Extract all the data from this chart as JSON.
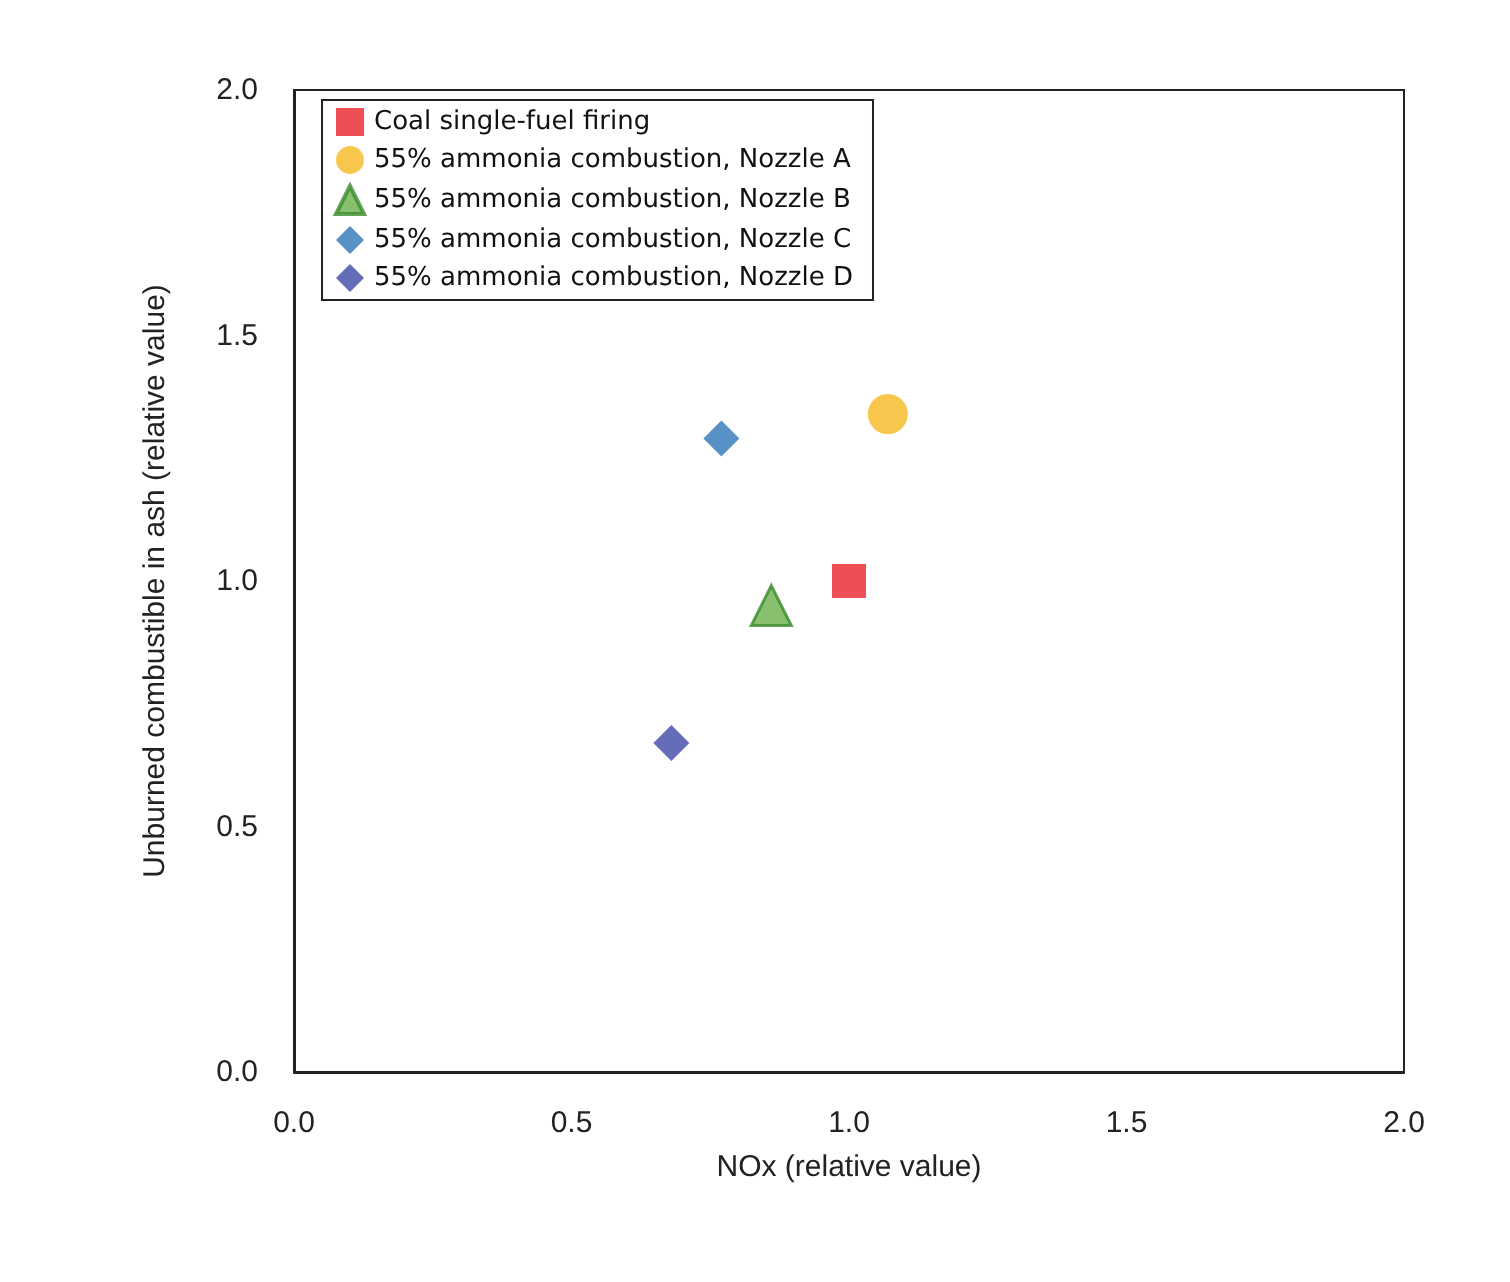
{
  "chart_data": {
    "type": "scatter",
    "xlabel": "NOx (relative value)",
    "ylabel": "Unburned combustible in ash (relative value)",
    "xlim": [
      0,
      2
    ],
    "ylim": [
      0,
      2
    ],
    "xticks": [
      {
        "value": 0,
        "label": "0.0"
      },
      0.5,
      {
        "value": 1,
        "label": "1.0"
      },
      1.5,
      {
        "value": 2,
        "label": "2.0"
      }
    ],
    "yticks": [
      {
        "value": 0,
        "label": "0.0"
      },
      0.5,
      {
        "value": 1,
        "label": "1.0"
      },
      1.5,
      {
        "value": 2,
        "label": "2.0"
      }
    ],
    "grid": false,
    "legend": "top left",
    "series": [
      {
        "name": "Coal single-fuel firing",
        "color": "#e8232a",
        "marker": "square",
        "x": [
          1.0
        ],
        "values": [
          1.0
        ]
      },
      {
        "name": "55% ammonia combustion, Nozzle A",
        "color": "#f5b921",
        "marker": "circle",
        "x": [
          1.07
        ],
        "values": [
          1.34
        ]
      },
      {
        "name": "55% ammonia combustion, Nozzle B",
        "color": "#6ab04c",
        "marker": "triangle",
        "x": [
          0.86
        ],
        "values": [
          0.95
        ]
      },
      {
        "name": "55% ammonia combustion, Nozzle C",
        "color": "#2e75b6",
        "marker": "diamond",
        "x": [
          0.77
        ],
        "values": [
          1.29
        ]
      },
      {
        "name": "55% ammonia combustion, Nozzle D",
        "color": "#3f48a8",
        "marker": "diamond",
        "x": [
          0.68
        ],
        "values": [
          0.67
        ]
      }
    ]
  }
}
